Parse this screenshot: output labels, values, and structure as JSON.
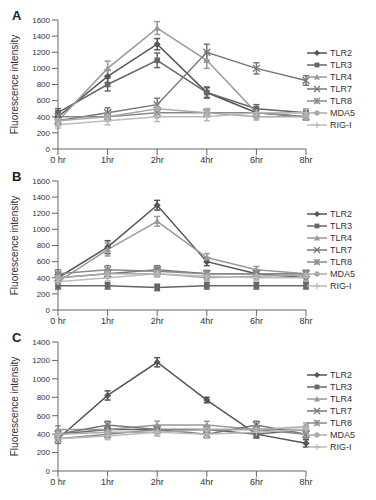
{
  "chart_data": [
    {
      "type": "line",
      "title": "A",
      "y_label": "Fluorescence intensity",
      "categories": [
        "0 hr",
        "1hr",
        "2hr",
        "4hr",
        "6hr",
        "8hr"
      ],
      "ylim": [
        0,
        1600
      ],
      "yticks": [
        0,
        200,
        400,
        600,
        800,
        1000,
        1200,
        1400,
        1600
      ],
      "grid": false,
      "legend": "right",
      "series": [
        {
          "name": "TLR2",
          "color": "#555555",
          "marker": "diamond",
          "values": [
            400,
            900,
            1300,
            700,
            450,
            400
          ],
          "errors": [
            60,
            80,
            70,
            60,
            50,
            40
          ]
        },
        {
          "name": "TLR3",
          "color": "#666666",
          "marker": "square",
          "values": [
            450,
            800,
            1100,
            700,
            500,
            450
          ],
          "errors": [
            50,
            80,
            90,
            70,
            50,
            40
          ]
        },
        {
          "name": "TLR4",
          "color": "#999999",
          "marker": "triangle",
          "values": [
            350,
            1000,
            1500,
            1100,
            450,
            450
          ],
          "errors": [
            60,
            90,
            80,
            100,
            50,
            50
          ]
        },
        {
          "name": "TLR7",
          "color": "#777777",
          "marker": "x",
          "values": [
            350,
            450,
            550,
            1200,
            1000,
            850
          ],
          "errors": [
            50,
            60,
            80,
            100,
            70,
            60
          ]
        },
        {
          "name": "TLR8",
          "color": "#888888",
          "marker": "star",
          "values": [
            400,
            400,
            450,
            450,
            450,
            400
          ],
          "errors": [
            50,
            50,
            60,
            50,
            50,
            40
          ]
        },
        {
          "name": "MDA5",
          "color": "#aaaaaa",
          "marker": "circle",
          "values": [
            350,
            400,
            500,
            450,
            400,
            400
          ],
          "errors": [
            50,
            50,
            60,
            50,
            40,
            40
          ]
        },
        {
          "name": "RIG-I",
          "color": "#bbbbbb",
          "marker": "plus",
          "values": [
            300,
            350,
            400,
            400,
            450,
            450
          ],
          "errors": [
            40,
            50,
            60,
            50,
            50,
            40
          ]
        }
      ]
    },
    {
      "type": "line",
      "title": "B",
      "y_label": "Fluorescence intensity",
      "categories": [
        "0 hr",
        "1hr",
        "2hr",
        "4hr",
        "6hr",
        "8hr"
      ],
      "ylim": [
        0,
        1600
      ],
      "yticks": [
        0,
        200,
        400,
        600,
        800,
        1000,
        1200,
        1400,
        1600
      ],
      "grid": false,
      "legend": "right",
      "series": [
        {
          "name": "TLR2",
          "color": "#555555",
          "marker": "diamond",
          "values": [
            400,
            780,
            1300,
            600,
            450,
            400
          ],
          "errors": [
            60,
            80,
            60,
            50,
            40,
            40
          ]
        },
        {
          "name": "TLR3",
          "color": "#666666",
          "marker": "square",
          "values": [
            300,
            300,
            280,
            300,
            300,
            300
          ],
          "errors": [
            40,
            40,
            40,
            40,
            40,
            40
          ]
        },
        {
          "name": "TLR4",
          "color": "#999999",
          "marker": "triangle",
          "values": [
            350,
            750,
            1100,
            650,
            500,
            450
          ],
          "errors": [
            50,
            80,
            60,
            50,
            40,
            40
          ]
        },
        {
          "name": "TLR7",
          "color": "#777777",
          "marker": "x",
          "values": [
            400,
            450,
            500,
            450,
            450,
            450
          ],
          "errors": [
            50,
            50,
            50,
            40,
            40,
            40
          ]
        },
        {
          "name": "TLR8",
          "color": "#888888",
          "marker": "star",
          "values": [
            450,
            500,
            480,
            450,
            450,
            450
          ],
          "errors": [
            50,
            50,
            50,
            40,
            40,
            40
          ]
        },
        {
          "name": "MDA5",
          "color": "#aaaaaa",
          "marker": "circle",
          "values": [
            400,
            450,
            450,
            400,
            420,
            430
          ],
          "errors": [
            40,
            40,
            40,
            40,
            40,
            40
          ]
        },
        {
          "name": "RIG-I",
          "color": "#bbbbbb",
          "marker": "plus",
          "values": [
            350,
            400,
            450,
            420,
            400,
            400
          ],
          "errors": [
            40,
            40,
            40,
            40,
            40,
            40
          ]
        }
      ]
    },
    {
      "type": "line",
      "title": "C",
      "y_label": "Fluorescence intensity",
      "categories": [
        "0 hr",
        "1hr",
        "2hr",
        "4hr",
        "6hr",
        "8hr"
      ],
      "ylim": [
        0,
        1400
      ],
      "yticks": [
        0,
        200,
        400,
        600,
        800,
        1000,
        1200,
        1400
      ],
      "grid": false,
      "legend": "right",
      "series": [
        {
          "name": "TLR2",
          "color": "#555555",
          "marker": "diamond",
          "values": [
            350,
            820,
            1180,
            770,
            400,
            300
          ],
          "errors": [
            50,
            50,
            50,
            30,
            40,
            40
          ]
        },
        {
          "name": "TLR3",
          "color": "#666666",
          "marker": "square",
          "values": [
            400,
            450,
            450,
            450,
            400,
            450
          ],
          "errors": [
            40,
            40,
            40,
            40,
            40,
            40
          ]
        },
        {
          "name": "TLR4",
          "color": "#999999",
          "marker": "triangle",
          "values": [
            450,
            450,
            500,
            500,
            450,
            450
          ],
          "errors": [
            40,
            40,
            40,
            40,
            40,
            40
          ]
        },
        {
          "name": "TLR7",
          "color": "#777777",
          "marker": "x",
          "values": [
            400,
            500,
            450,
            400,
            500,
            400
          ],
          "errors": [
            40,
            40,
            40,
            40,
            40,
            40
          ]
        },
        {
          "name": "TLR8",
          "color": "#888888",
          "marker": "star",
          "values": [
            350,
            400,
            450,
            450,
            450,
            400
          ],
          "errors": [
            40,
            40,
            40,
            40,
            40,
            40
          ]
        },
        {
          "name": "MDA5",
          "color": "#aaaaaa",
          "marker": "circle",
          "values": [
            400,
            420,
            420,
            450,
            450,
            480
          ],
          "errors": [
            40,
            40,
            40,
            40,
            40,
            40
          ]
        },
        {
          "name": "RIG-I",
          "color": "#bbbbbb",
          "marker": "plus",
          "values": [
            350,
            380,
            420,
            400,
            420,
            450
          ],
          "errors": [
            40,
            40,
            40,
            40,
            40,
            40
          ]
        }
      ]
    }
  ]
}
